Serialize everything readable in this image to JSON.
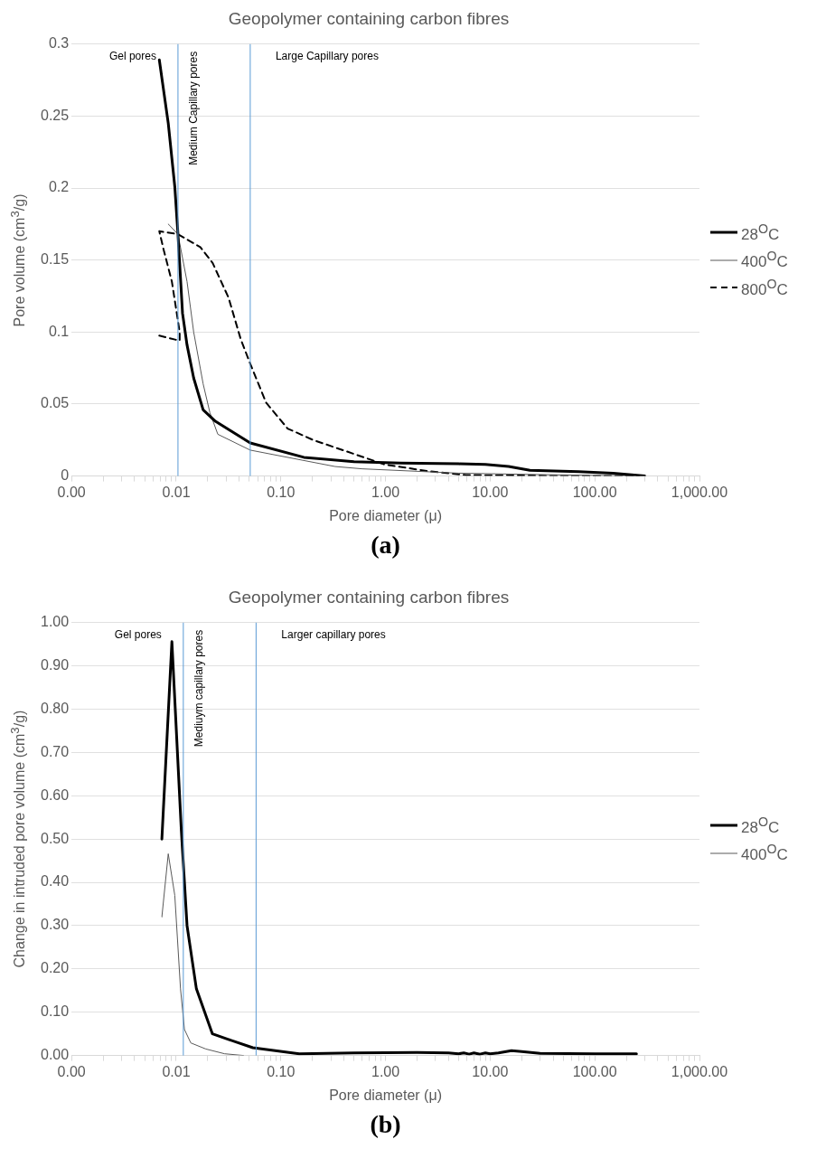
{
  "chart_data": [
    {
      "type": "line",
      "title": "Geopolymer containing carbon fibres",
      "xlabel": "Pore diameter (μ)",
      "ylabel": "Pore volume (cm$^{3}$/g)",
      "log": "x",
      "grid": "y",
      "legend": "right",
      "marker": "none",
      "xlim": [
        0.001,
        1000
      ],
      "ylim": [
        0,
        0.3
      ],
      "yticks": [
        0,
        0.05,
        0.1,
        0.15,
        0.2,
        0.25,
        0.3
      ],
      "xticks": [
        {
          "value": 0.001,
          "label": "0.00"
        },
        {
          "value": 0.002,
          "label": null
        },
        {
          "value": 0.003,
          "label": null
        },
        {
          "value": 0.004,
          "label": null
        },
        {
          "value": 0.005,
          "label": null
        },
        {
          "value": 0.006,
          "label": null
        },
        {
          "value": 0.007,
          "label": null
        },
        {
          "value": 0.008,
          "label": null
        },
        {
          "value": 0.009,
          "label": null
        },
        {
          "value": 0.01,
          "label": "0.01"
        },
        {
          "value": 0.02,
          "label": null
        },
        {
          "value": 0.03,
          "label": null
        },
        {
          "value": 0.04,
          "label": null
        },
        {
          "value": 0.05,
          "label": null
        },
        {
          "value": 0.06,
          "label": null
        },
        {
          "value": 0.07,
          "label": null
        },
        {
          "value": 0.08,
          "label": null
        },
        {
          "value": 0.09,
          "label": null
        },
        {
          "value": 0.1,
          "label": "0.10"
        },
        {
          "value": 0.2,
          "label": null
        },
        {
          "value": 0.3,
          "label": null
        },
        {
          "value": 0.4,
          "label": null
        },
        {
          "value": 0.5,
          "label": null
        },
        {
          "value": 0.6,
          "label": null
        },
        {
          "value": 0.7,
          "label": null
        },
        {
          "value": 0.8,
          "label": null
        },
        {
          "value": 0.9,
          "label": null
        },
        {
          "value": 1,
          "label": "1.00"
        },
        {
          "value": 2,
          "label": null
        },
        {
          "value": 3,
          "label": null
        },
        {
          "value": 4,
          "label": null
        },
        {
          "value": 5,
          "label": null
        },
        {
          "value": 6,
          "label": null
        },
        {
          "value": 7,
          "label": null
        },
        {
          "value": 8,
          "label": null
        },
        {
          "value": 9,
          "label": null
        },
        {
          "value": 10,
          "label": "10.00"
        },
        {
          "value": 20,
          "label": null
        },
        {
          "value": 30,
          "label": null
        },
        {
          "value": 40,
          "label": null
        },
        {
          "value": 50,
          "label": null
        },
        {
          "value": 60,
          "label": null
        },
        {
          "value": 70,
          "label": null
        },
        {
          "value": 80,
          "label": null
        },
        {
          "value": 90,
          "label": null
        },
        {
          "value": 100,
          "label": "100.00"
        },
        {
          "value": 200,
          "label": null
        },
        {
          "value": 300,
          "label": null
        },
        {
          "value": 400,
          "label": null
        },
        {
          "value": 500,
          "label": null
        },
        {
          "value": 600,
          "label": null
        },
        {
          "value": 700,
          "label": null
        },
        {
          "value": 800,
          "label": null
        },
        {
          "value": 900,
          "label": null
        },
        {
          "value": 1000,
          "label": "1,000.00"
        }
      ],
      "ref_lines": [
        {
          "axis": "x",
          "value": 0.0104,
          "color": "#5b9bd5"
        },
        {
          "axis": "x",
          "value": 0.051,
          "color": "#5b9bd5"
        }
      ],
      "annotations": [
        "Gel pores",
        "Medium Capillary pores",
        "Large Capillary pores",
        "(a)"
      ],
      "series": [
        {
          "name": "28$^{O}$C",
          "color": "#000000",
          "line_style": "solid",
          "x": [
            0.0069,
            0.0084,
            0.0097,
            0.0104,
            0.0115,
            0.0127,
            0.0147,
            0.0181,
            0.0237,
            0.051,
            0.166,
            0.5,
            1.4,
            5,
            9,
            15,
            24,
            70,
            150,
            300
          ],
          "values": [
            0.289,
            0.245,
            0.201,
            0.168,
            0.113,
            0.091,
            0.068,
            0.046,
            0.038,
            0.023,
            0.013,
            0.01,
            0.009,
            0.0085,
            0.008,
            0.0066,
            0.004,
            0.003,
            0.002,
            0
          ]
        },
        {
          "name": "400$^{O}$C",
          "color": "#595959",
          "line_style": "solid",
          "x": [
            0.0084,
            0.0104,
            0.0127,
            0.0147,
            0.0181,
            0.021,
            0.025,
            0.051,
            0.33,
            0.6,
            5,
            30,
            150,
            300
          ],
          "values": [
            0.175,
            0.168,
            0.135,
            0.1,
            0.064,
            0.044,
            0.029,
            0.018,
            0.0066,
            0.005,
            0.002,
            0.001,
            0.0003,
            0
          ]
        },
        {
          "name": "800$^{O}$C",
          "color": "#000000",
          "line_style": "dashed",
          "x": [
            0.0069,
            0.0108,
            0.0108,
            0.0091,
            0.0076,
            0.0069,
            0.0104,
            0.017,
            0.0223,
            0.0316,
            0.0414,
            0.051,
            0.0723,
            0.116,
            0.204,
            0.43,
            0.98,
            2.6,
            5.9,
            113,
            263
          ],
          "values": [
            0.0975,
            0.094,
            0.1,
            0.135,
            0.157,
            0.17,
            0.168,
            0.159,
            0.148,
            0.124,
            0.095,
            0.078,
            0.051,
            0.033,
            0.025,
            0.017,
            0.008,
            0.0033,
            0.0007,
            0,
            0
          ]
        }
      ]
    },
    {
      "type": "line",
      "title": "Geopolymer containing carbon fibres",
      "xlabel": "Pore diameter (μ)",
      "ylabel": "Change in intruded pore volume (cm$^{3}$/g)",
      "log": "x",
      "grid": "y",
      "legend": "right",
      "marker": "none",
      "xlim": [
        0.001,
        1000
      ],
      "ylim": [
        0,
        1
      ],
      "yticks": [
        {
          "value": 0,
          "label": "0.00"
        },
        {
          "value": 0.1,
          "label": "0.10"
        },
        {
          "value": 0.2,
          "label": "0.20"
        },
        {
          "value": 0.3,
          "label": "0.30"
        },
        {
          "value": 0.4,
          "label": "0.40"
        },
        {
          "value": 0.5,
          "label": "0.50"
        },
        {
          "value": 0.6,
          "label": "0.60"
        },
        {
          "value": 0.7,
          "label": "0.70"
        },
        {
          "value": 0.8,
          "label": "0.80"
        },
        {
          "value": 0.9,
          "label": "0.90"
        },
        {
          "value": 1,
          "label": "1.00"
        }
      ],
      "xticks": [
        {
          "value": 0.001,
          "label": "0.00"
        },
        {
          "value": 0.002,
          "label": null
        },
        {
          "value": 0.003,
          "label": null
        },
        {
          "value": 0.004,
          "label": null
        },
        {
          "value": 0.005,
          "label": null
        },
        {
          "value": 0.006,
          "label": null
        },
        {
          "value": 0.007,
          "label": null
        },
        {
          "value": 0.008,
          "label": null
        },
        {
          "value": 0.009,
          "label": null
        },
        {
          "value": 0.01,
          "label": "0.01"
        },
        {
          "value": 0.02,
          "label": null
        },
        {
          "value": 0.03,
          "label": null
        },
        {
          "value": 0.04,
          "label": null
        },
        {
          "value": 0.05,
          "label": null
        },
        {
          "value": 0.06,
          "label": null
        },
        {
          "value": 0.07,
          "label": null
        },
        {
          "value": 0.08,
          "label": null
        },
        {
          "value": 0.09,
          "label": null
        },
        {
          "value": 0.1,
          "label": "0.10"
        },
        {
          "value": 0.2,
          "label": null
        },
        {
          "value": 0.3,
          "label": null
        },
        {
          "value": 0.4,
          "label": null
        },
        {
          "value": 0.5,
          "label": null
        },
        {
          "value": 0.6,
          "label": null
        },
        {
          "value": 0.7,
          "label": null
        },
        {
          "value": 0.8,
          "label": null
        },
        {
          "value": 0.9,
          "label": null
        },
        {
          "value": 1,
          "label": "1.00"
        },
        {
          "value": 2,
          "label": null
        },
        {
          "value": 3,
          "label": null
        },
        {
          "value": 4,
          "label": null
        },
        {
          "value": 5,
          "label": null
        },
        {
          "value": 6,
          "label": null
        },
        {
          "value": 7,
          "label": null
        },
        {
          "value": 8,
          "label": null
        },
        {
          "value": 9,
          "label": null
        },
        {
          "value": 10,
          "label": "10.00"
        },
        {
          "value": 20,
          "label": null
        },
        {
          "value": 30,
          "label": null
        },
        {
          "value": 40,
          "label": null
        },
        {
          "value": 50,
          "label": null
        },
        {
          "value": 60,
          "label": null
        },
        {
          "value": 70,
          "label": null
        },
        {
          "value": 80,
          "label": null
        },
        {
          "value": 90,
          "label": null
        },
        {
          "value": 100,
          "label": "100.00"
        },
        {
          "value": 200,
          "label": null
        },
        {
          "value": 300,
          "label": null
        },
        {
          "value": 400,
          "label": null
        },
        {
          "value": 500,
          "label": null
        },
        {
          "value": 600,
          "label": null
        },
        {
          "value": 700,
          "label": null
        },
        {
          "value": 800,
          "label": null
        },
        {
          "value": 900,
          "label": null
        },
        {
          "value": 1000,
          "label": "1,000.00"
        }
      ],
      "ref_lines": [
        {
          "axis": "x",
          "value": 0.0117,
          "color": "#5b9bd5"
        },
        {
          "axis": "x",
          "value": 0.058,
          "color": "#5b9bd5"
        }
      ],
      "annotations": [
        "Gel pores",
        "Mediuym capillary pores",
        "Larger capillary pores",
        "(b)"
      ],
      "series": [
        {
          "name": "28$^{O}$C",
          "color": "#000000",
          "line_style": "solid",
          "x": [
            0.0073,
            0.0091,
            0.0112,
            0.0127,
            0.0156,
            0.0222,
            0.0316,
            0.054,
            0.15,
            0.5,
            2,
            4,
            5,
            5.6,
            6.3,
            7,
            8,
            9,
            10,
            12,
            16,
            20,
            30,
            100,
            250
          ],
          "values": [
            0.5,
            0.956,
            0.52,
            0.3,
            0.154,
            0.05,
            0.037,
            0.018,
            0.004,
            0.006,
            0.007,
            0.006,
            0.004,
            0.006,
            0.003,
            0.006,
            0.003,
            0.006,
            0.004,
            0.006,
            0.011,
            0.009,
            0.005,
            0.004,
            0.004
          ]
        },
        {
          "name": "400$^{O}$C",
          "color": "#595959",
          "line_style": "solid",
          "x": [
            0.0073,
            0.0084,
            0.0097,
            0.011,
            0.012,
            0.0138,
            0.0192,
            0.029,
            0.044
          ],
          "values": [
            0.32,
            0.466,
            0.37,
            0.154,
            0.06,
            0.029,
            0.015,
            0.004,
            0
          ]
        }
      ]
    }
  ]
}
